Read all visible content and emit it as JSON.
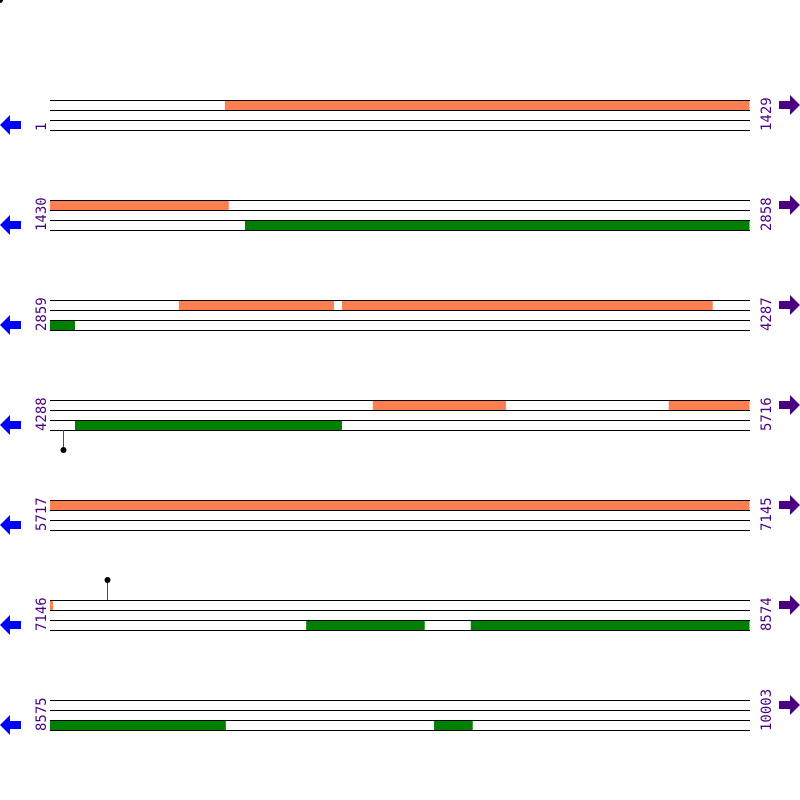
{
  "colors": {
    "forward_feature": "#ff7f50",
    "reverse_feature": "#008000",
    "label": "#4b0082",
    "left_arrow": "#0000ff",
    "right_arrow": "#4b0082",
    "marker_stem": "#ff0000",
    "marker_head": "#000000"
  },
  "bp_per_row": 1429,
  "rows": [
    {
      "start": "1",
      "end": "1429",
      "s": 1,
      "fwd": [
        [
          358,
          1429
        ]
      ],
      "rev": [],
      "markers": []
    },
    {
      "start": "1430",
      "end": "2858",
      "s": 1430,
      "fwd": [
        [
          1430,
          1795
        ]
      ],
      "rev": [
        [
          1828,
          2858
        ]
      ],
      "markers": []
    },
    {
      "start": "2859",
      "end": "4287",
      "s": 2859,
      "fwd": [
        [
          3122,
          3439
        ],
        [
          3455,
          4212
        ]
      ],
      "rev": [
        [
          2859,
          2910
        ]
      ],
      "markers": []
    },
    {
      "start": "4288",
      "end": "5716",
      "s": 4288,
      "fwd": [
        [
          4947,
          5219
        ],
        [
          5551,
          5716
        ]
      ],
      "rev": [
        [
          4339,
          4884
        ]
      ],
      "markers": [
        {
          "pos": 4315,
          "dir": "down"
        }
      ]
    },
    {
      "start": "5717",
      "end": "7145",
      "s": 5717,
      "fwd": [
        [
          5717,
          7145
        ]
      ],
      "rev": [],
      "markers": []
    },
    {
      "start": "7146",
      "end": "8574",
      "s": 7146,
      "fwd": [
        [
          7146,
          7152
        ]
      ],
      "rev": [
        [
          7669,
          7911
        ],
        [
          8005,
          8574
        ]
      ],
      "markers": [
        {
          "pos": 7262,
          "dir": "up"
        }
      ]
    },
    {
      "start": "8575",
      "end": "10003",
      "s": 8575,
      "fwd": [],
      "rev": [
        [
          8575,
          8934
        ],
        [
          9359,
          9438
        ]
      ],
      "markers": []
    }
  ]
}
